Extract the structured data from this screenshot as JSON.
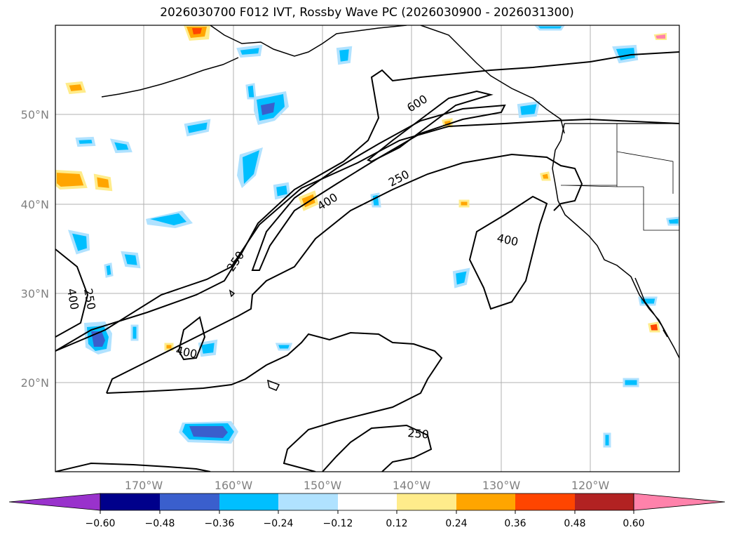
{
  "title": "2026030700 F012 IVT, Rossby Wave PC (2026030900 - 2026031300)",
  "lat_labels": [
    "50°N",
    "40°N",
    "30°N",
    "20°N"
  ],
  "lon_labels": [
    "170°W",
    "160°W",
    "150°W",
    "140°W",
    "130°W",
    "120°W"
  ],
  "contour_labels": [
    "600",
    "400",
    "250",
    "250",
    "400",
    "250",
    "400",
    "400",
    "250"
  ],
  "colorbar": {
    "tick_labels": [
      "−0.60",
      "−0.48",
      "−0.36",
      "−0.24",
      "−0.12",
      "0.12",
      "0.24",
      "0.36",
      "0.48",
      "0.60"
    ],
    "colors": [
      "#9932cc",
      "#00008b",
      "#3a5fcd",
      "#00bfff",
      "#b0e2ff",
      "#ffffff",
      "#ffec8b",
      "#ffa500",
      "#ff4500",
      "#b22222",
      "#ff82ab"
    ]
  }
}
